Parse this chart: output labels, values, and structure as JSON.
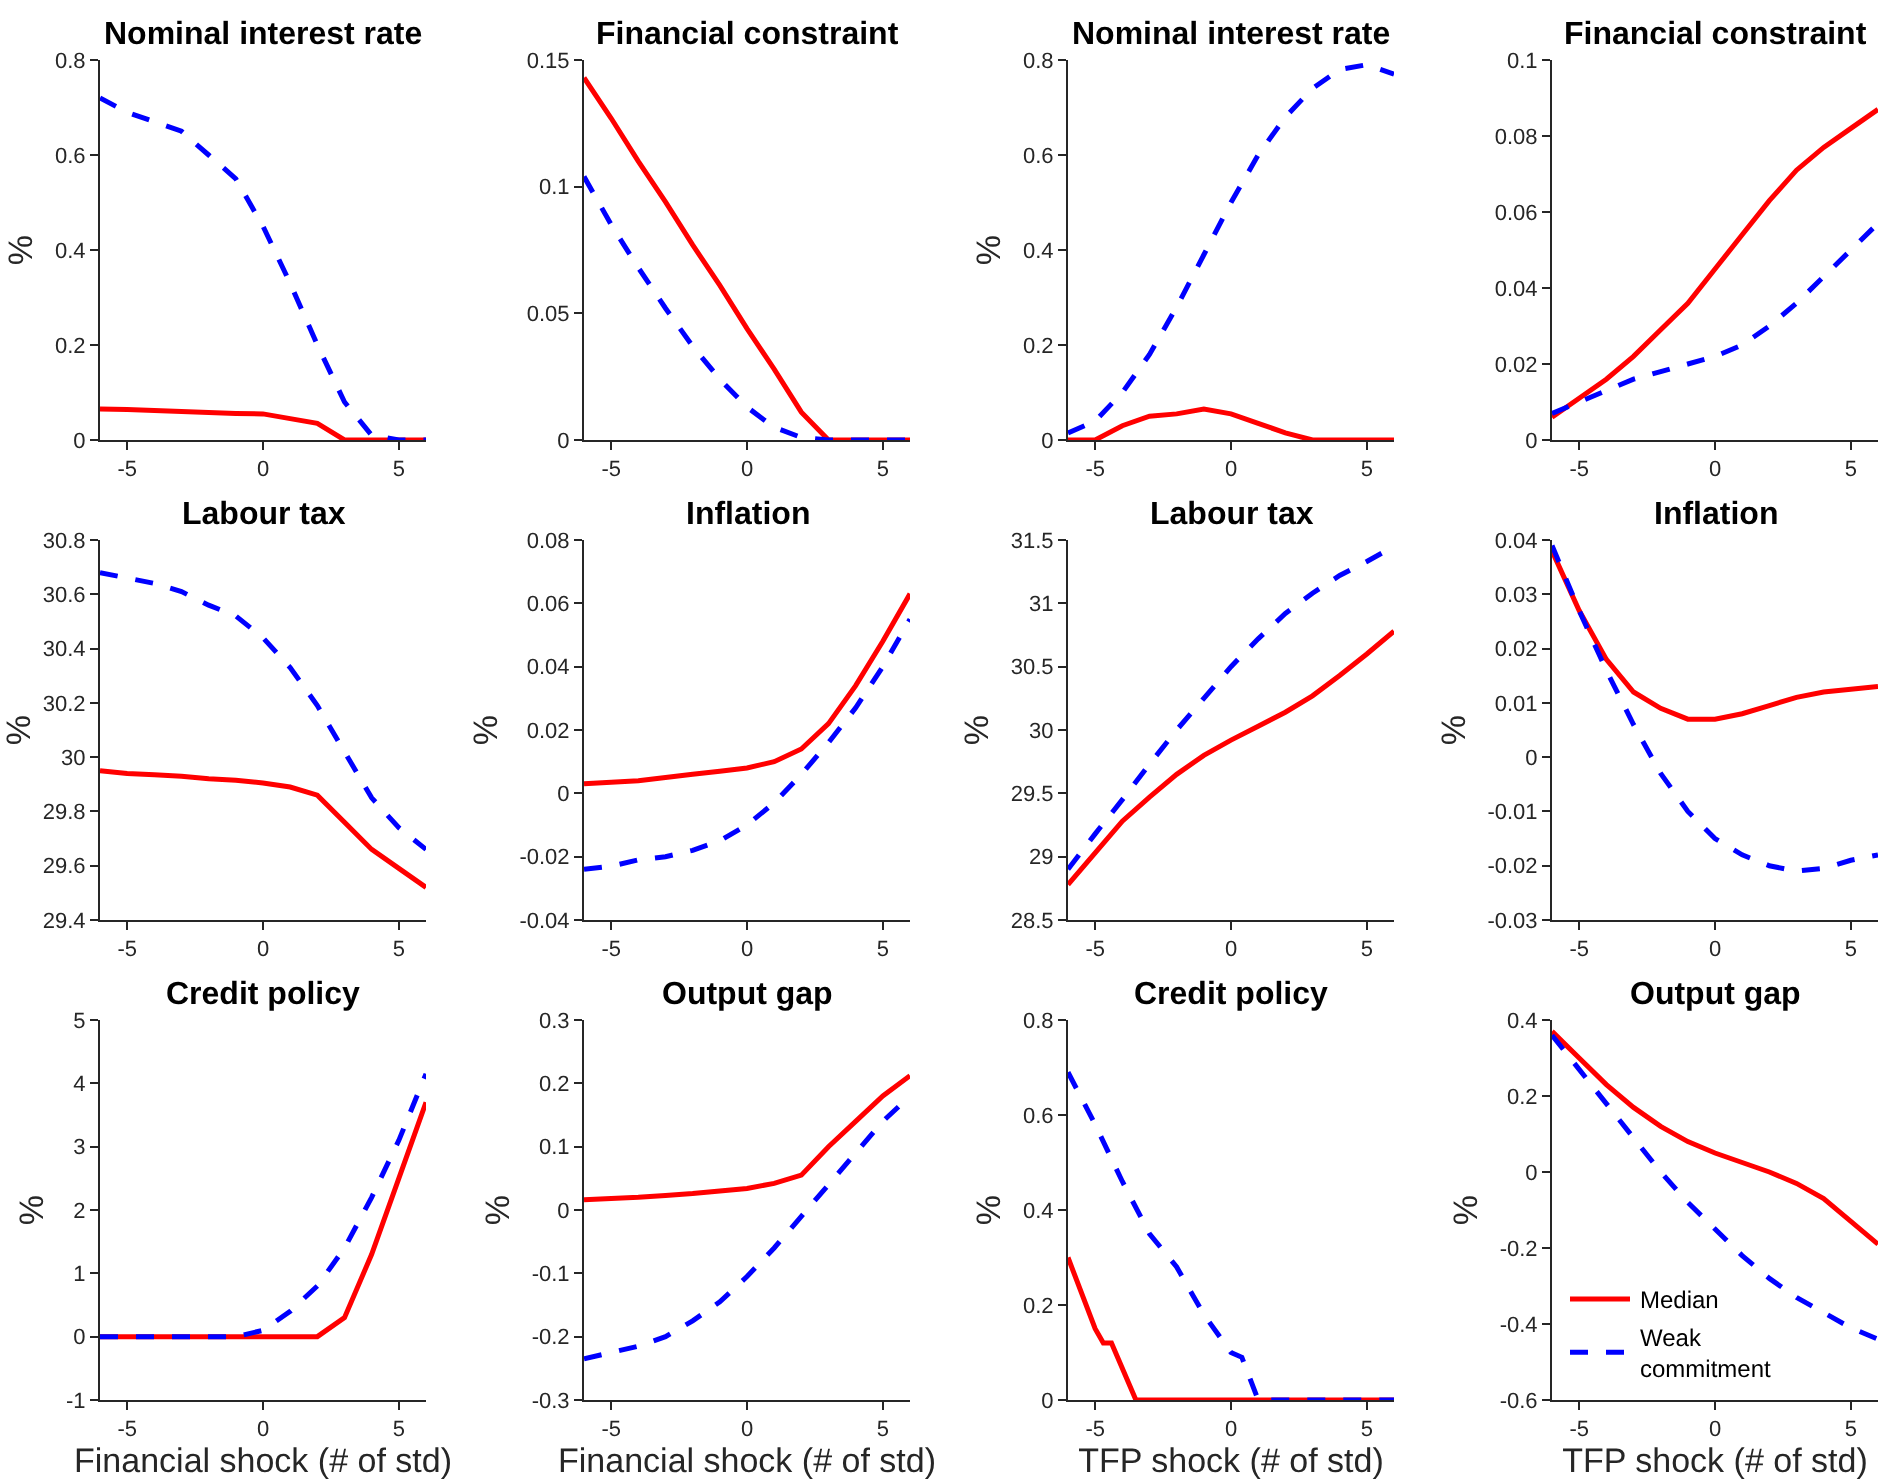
{
  "chart_data": [
    {
      "type": "line",
      "title": "Nominal interest rate",
      "ylabel": "%",
      "xlim": [
        -6,
        6
      ],
      "xticks": [
        -5,
        0,
        5
      ],
      "ylim": [
        0,
        0.8
      ],
      "yticks": [
        0,
        0.2,
        0.4,
        0.6,
        0.8
      ],
      "x": [
        -6,
        -5,
        -4,
        -3,
        -2,
        -1,
        0,
        1,
        2,
        3,
        4,
        5,
        6
      ],
      "series": [
        {
          "color": "#ff0000",
          "line_style": "solid",
          "values": [
            0.065,
            0.064,
            0.062,
            0.06,
            0.058,
            0.056,
            0.055,
            0.045,
            0.035,
            0,
            0,
            0,
            0
          ]
        },
        {
          "color": "#0000ff",
          "line_style": "dashed",
          "values": [
            0.72,
            0.69,
            0.67,
            0.65,
            0.6,
            0.55,
            0.45,
            0.33,
            0.2,
            0.08,
            0.01,
            0,
            0
          ]
        }
      ]
    },
    {
      "type": "line",
      "title": "Financial constraint",
      "xlim": [
        -6,
        6
      ],
      "xticks": [
        -5,
        0,
        5
      ],
      "ylim": [
        0,
        0.15
      ],
      "yticks": [
        0,
        0.05,
        0.1,
        0.15
      ],
      "x": [
        -6,
        -5,
        -4,
        -3,
        -2,
        -1,
        0,
        1,
        2,
        3,
        4,
        5,
        6
      ],
      "series": [
        {
          "color": "#ff0000",
          "line_style": "solid",
          "values": [
            0.143,
            0.127,
            0.11,
            0.094,
            0.077,
            0.061,
            0.044,
            0.028,
            0.011,
            0,
            0,
            0,
            0
          ]
        },
        {
          "color": "#0000ff",
          "line_style": "dashed",
          "values": [
            0.104,
            0.085,
            0.068,
            0.052,
            0.037,
            0.024,
            0.013,
            0.005,
            0.001,
            0,
            0,
            0,
            0
          ]
        }
      ]
    },
    {
      "type": "line",
      "title": "Nominal interest rate",
      "ylabel": "%",
      "xlim": [
        -6,
        6
      ],
      "xticks": [
        -5,
        0,
        5
      ],
      "ylim": [
        0,
        0.8
      ],
      "yticks": [
        0,
        0.2,
        0.4,
        0.6,
        0.8
      ],
      "x": [
        -6,
        -5,
        -4,
        -3,
        -2,
        -1,
        0,
        1,
        2,
        3,
        4,
        5,
        6
      ],
      "series": [
        {
          "color": "#ff0000",
          "line_style": "solid",
          "values": [
            0,
            0,
            0.03,
            0.05,
            0.055,
            0.065,
            0.055,
            0.035,
            0.015,
            0,
            0,
            0,
            0
          ]
        },
        {
          "color": "#0000ff",
          "line_style": "dashed",
          "values": [
            0.015,
            0.04,
            0.1,
            0.18,
            0.28,
            0.39,
            0.5,
            0.6,
            0.68,
            0.74,
            0.78,
            0.79,
            0.77
          ]
        }
      ]
    },
    {
      "type": "line",
      "title": "Financial constraint",
      "xlim": [
        -6,
        6
      ],
      "xticks": [
        -5,
        0,
        5
      ],
      "ylim": [
        0,
        0.1
      ],
      "yticks": [
        0,
        0.02,
        0.04,
        0.06,
        0.08,
        0.1
      ],
      "x": [
        -6,
        -5,
        -4,
        -3,
        -2,
        -1,
        0,
        1,
        2,
        3,
        4,
        5,
        6
      ],
      "series": [
        {
          "color": "#ff0000",
          "line_style": "solid",
          "values": [
            0.006,
            0.011,
            0.016,
            0.022,
            0.029,
            0.036,
            0.045,
            0.054,
            0.063,
            0.071,
            0.077,
            0.082,
            0.087
          ]
        },
        {
          "color": "#0000ff",
          "line_style": "dashed",
          "values": [
            0.007,
            0.01,
            0.013,
            0.016,
            0.018,
            0.02,
            0.022,
            0.025,
            0.03,
            0.036,
            0.043,
            0.05,
            0.057
          ]
        }
      ]
    },
    {
      "type": "line",
      "title": "Labour tax",
      "ylabel": "%",
      "xlim": [
        -6,
        6
      ],
      "xticks": [
        -5,
        0,
        5
      ],
      "ylim": [
        29.4,
        30.8
      ],
      "yticks": [
        29.4,
        29.6,
        29.8,
        30,
        30.2,
        30.4,
        30.6,
        30.8
      ],
      "x": [
        -6,
        -5,
        -4,
        -3,
        -2,
        -1,
        0,
        1,
        2,
        3,
        4,
        5,
        6
      ],
      "series": [
        {
          "color": "#ff0000",
          "line_style": "solid",
          "values": [
            29.95,
            29.94,
            29.935,
            29.93,
            29.92,
            29.915,
            29.905,
            29.89,
            29.86,
            29.76,
            29.66,
            29.59,
            29.52
          ]
        },
        {
          "color": "#0000ff",
          "line_style": "dashed",
          "values": [
            30.68,
            30.66,
            30.64,
            30.61,
            30.56,
            30.52,
            30.44,
            30.33,
            30.19,
            30.02,
            29.85,
            29.74,
            29.66
          ]
        }
      ]
    },
    {
      "type": "line",
      "title": "Inflation",
      "ylabel": "%",
      "xlim": [
        -6,
        6
      ],
      "xticks": [
        -5,
        0,
        5
      ],
      "ylim": [
        -0.04,
        0.08
      ],
      "yticks": [
        -0.04,
        -0.02,
        0,
        0.02,
        0.04,
        0.06,
        0.08
      ],
      "x": [
        -6,
        -5,
        -4,
        -3,
        -2,
        -1,
        0,
        1,
        2,
        3,
        4,
        5,
        6
      ],
      "series": [
        {
          "color": "#ff0000",
          "line_style": "solid",
          "values": [
            0.003,
            0.0035,
            0.004,
            0.005,
            0.006,
            0.007,
            0.008,
            0.01,
            0.014,
            0.022,
            0.034,
            0.048,
            0.063
          ]
        },
        {
          "color": "#0000ff",
          "line_style": "dashed",
          "values": [
            -0.024,
            -0.023,
            -0.021,
            -0.02,
            -0.018,
            -0.015,
            -0.01,
            -0.003,
            0.006,
            0.016,
            0.027,
            0.04,
            0.055
          ]
        }
      ]
    },
    {
      "type": "line",
      "title": "Labour tax",
      "ylabel": "%",
      "xlim": [
        -6,
        6
      ],
      "xticks": [
        -5,
        0,
        5
      ],
      "ylim": [
        28.5,
        31.5
      ],
      "yticks": [
        28.5,
        29,
        29.5,
        30,
        30.5,
        31,
        31.5
      ],
      "x": [
        -6,
        -5,
        -4,
        -3,
        -2,
        -1,
        0,
        1,
        2,
        3,
        4,
        5,
        6
      ],
      "series": [
        {
          "color": "#ff0000",
          "line_style": "solid",
          "values": [
            28.78,
            29.03,
            29.28,
            29.47,
            29.65,
            29.8,
            29.92,
            30.03,
            30.14,
            30.27,
            30.43,
            30.6,
            30.78
          ]
        },
        {
          "color": "#0000ff",
          "line_style": "dashed",
          "values": [
            28.9,
            29.18,
            29.45,
            29.73,
            30,
            30.25,
            30.5,
            30.72,
            30.92,
            31.08,
            31.22,
            31.33,
            31.45
          ]
        }
      ]
    },
    {
      "type": "line",
      "title": "Inflation",
      "ylabel": "%",
      "xlim": [
        -6,
        6
      ],
      "xticks": [
        -5,
        0,
        5
      ],
      "ylim": [
        -0.03,
        0.04
      ],
      "yticks": [
        -0.03,
        -0.02,
        -0.01,
        0,
        0.01,
        0.02,
        0.03,
        0.04
      ],
      "x": [
        -6,
        -5,
        -4,
        -3,
        -2,
        -1,
        0,
        1,
        2,
        3,
        4,
        5,
        6
      ],
      "series": [
        {
          "color": "#ff0000",
          "line_style": "solid",
          "values": [
            0.038,
            0.027,
            0.018,
            0.012,
            0.009,
            0.007,
            0.007,
            0.008,
            0.0095,
            0.011,
            0.012,
            0.0125,
            0.013
          ]
        },
        {
          "color": "#0000ff",
          "line_style": "dashed",
          "values": [
            0.039,
            0.027,
            0.016,
            0.006,
            -0.003,
            -0.01,
            -0.015,
            -0.018,
            -0.02,
            -0.021,
            -0.0205,
            -0.019,
            -0.018
          ]
        }
      ]
    },
    {
      "type": "line",
      "title": "Credit policy",
      "ylabel": "%",
      "xlabel": "Financial shock (# of std)",
      "xlim": [
        -6,
        6
      ],
      "xticks": [
        -5,
        0,
        5
      ],
      "ylim": [
        -1,
        5
      ],
      "yticks": [
        -1,
        0,
        1,
        2,
        3,
        4,
        5
      ],
      "x": [
        -6,
        -5,
        -4,
        -3,
        -2,
        -1,
        0,
        1,
        2,
        3,
        4,
        5,
        6
      ],
      "series": [
        {
          "color": "#ff0000",
          "line_style": "solid",
          "values": [
            0,
            0,
            0,
            0,
            0,
            0,
            0,
            0,
            0,
            0.3,
            1.3,
            2.5,
            3.7
          ]
        },
        {
          "color": "#0000ff",
          "line_style": "dashed",
          "values": [
            0,
            0,
            0,
            0,
            0,
            0,
            0.1,
            0.4,
            0.8,
            1.4,
            2.2,
            3.1,
            4.15
          ]
        }
      ]
    },
    {
      "type": "line",
      "title": "Output gap",
      "ylabel": "%",
      "xlabel": "Financial shock (# of std)",
      "xlim": [
        -6,
        6
      ],
      "xticks": [
        -5,
        0,
        5
      ],
      "ylim": [
        -0.3,
        0.3
      ],
      "yticks": [
        -0.3,
        -0.2,
        -0.1,
        0,
        0.1,
        0.2,
        0.3
      ],
      "x": [
        -6,
        -5,
        -4,
        -3,
        -2,
        -1,
        0,
        1,
        2,
        3,
        4,
        5,
        6
      ],
      "series": [
        {
          "color": "#ff0000",
          "line_style": "solid",
          "values": [
            0.016,
            0.018,
            0.02,
            0.023,
            0.026,
            0.03,
            0.034,
            0.042,
            0.055,
            0.1,
            0.14,
            0.18,
            0.212
          ]
        },
        {
          "color": "#0000ff",
          "line_style": "dashed",
          "values": [
            -0.235,
            -0.225,
            -0.215,
            -0.2,
            -0.175,
            -0.145,
            -0.105,
            -0.06,
            -0.01,
            0.04,
            0.09,
            0.14,
            0.18
          ]
        }
      ]
    },
    {
      "type": "line",
      "title": "Credit policy",
      "ylabel": "%",
      "xlabel": "TFP shock (# of std)",
      "xlim": [
        -6,
        6
      ],
      "xticks": [
        -5,
        0,
        5
      ],
      "ylim": [
        0,
        0.8
      ],
      "yticks": [
        0,
        0.2,
        0.4,
        0.6,
        0.8
      ],
      "series": [
        {
          "color": "#ff0000",
          "line_style": "solid",
          "x": [
            -6,
            -5,
            -4.7,
            -4.4,
            -3.5,
            6
          ],
          "values": [
            0.3,
            0.15,
            0.12,
            0.12,
            0,
            0
          ]
        },
        {
          "color": "#0000ff",
          "line_style": "dashed",
          "x": [
            -6,
            -5,
            -4,
            -3,
            -2,
            -1,
            0,
            0.4,
            1,
            6
          ],
          "values": [
            0.69,
            0.58,
            0.46,
            0.35,
            0.28,
            0.18,
            0.1,
            0.09,
            0,
            0
          ]
        }
      ]
    },
    {
      "type": "line",
      "title": "Output gap",
      "ylabel": "%",
      "xlabel": "TFP shock (# of std)",
      "xlim": [
        -6,
        6
      ],
      "xticks": [
        -5,
        0,
        5
      ],
      "ylim": [
        -0.6,
        0.4
      ],
      "yticks": [
        -0.6,
        -0.4,
        -0.2,
        0,
        0.2,
        0.4
      ],
      "legend": "bottom left",
      "x": [
        -6,
        -5,
        -4,
        -3,
        -2,
        -1,
        0,
        1,
        2,
        3,
        4,
        5,
        6
      ],
      "series": [
        {
          "name": "Median",
          "color": "#ff0000",
          "line_style": "solid",
          "values": [
            0.37,
            0.3,
            0.23,
            0.17,
            0.12,
            0.08,
            0.05,
            0.025,
            0,
            -0.03,
            -0.07,
            -0.13,
            -0.19
          ]
        },
        {
          "name": "Weak commitment",
          "color": "#0000ff",
          "line_style": "dashed",
          "values": [
            0.36,
            0.27,
            0.18,
            0.09,
            0,
            -0.08,
            -0.15,
            -0.22,
            -0.28,
            -0.33,
            -0.37,
            -0.41,
            -0.44
          ]
        }
      ]
    }
  ]
}
